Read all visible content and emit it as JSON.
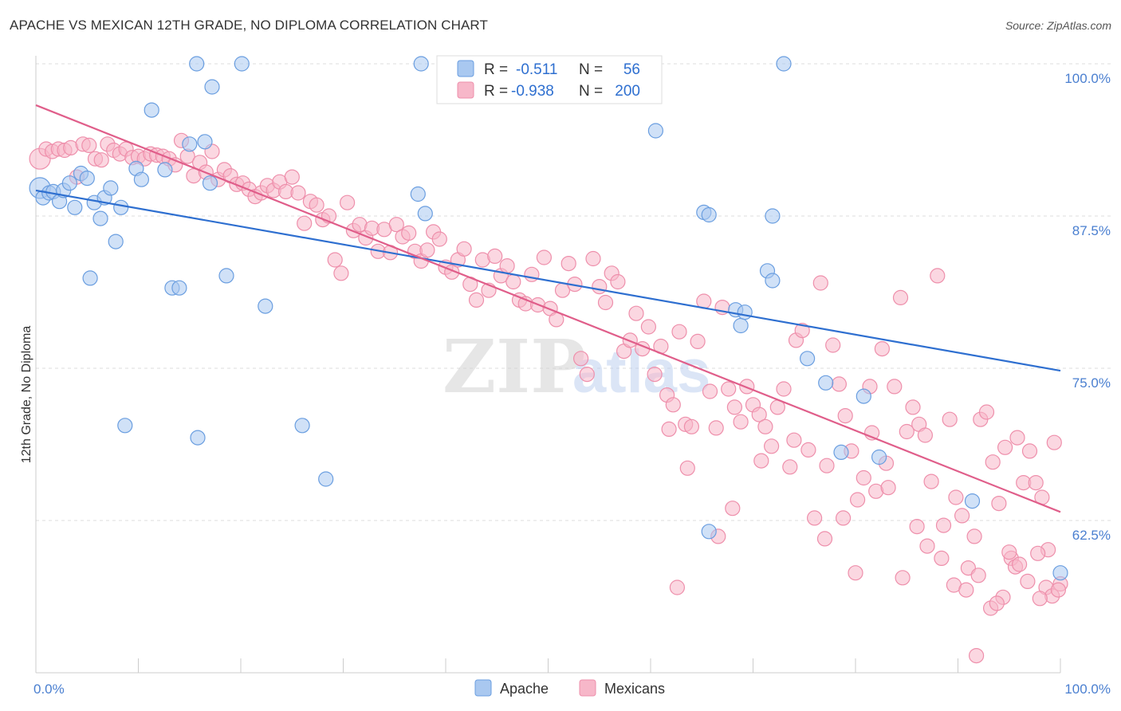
{
  "title": "APACHE VS MEXICAN 12TH GRADE, NO DIPLOMA CORRELATION CHART",
  "source": "Source: ZipAtlas.com",
  "watermark": {
    "zip": "ZIP",
    "atlas": "atlas"
  },
  "colors": {
    "apache_fill": "#a9c8f0",
    "apache_stroke": "#6a9ee0",
    "apache_line": "#2e6fd0",
    "mexican_fill": "#f7b7c9",
    "mexican_stroke": "#ee8fab",
    "mexican_line": "#e05e8a",
    "tick_label": "#4a7fd0",
    "grid": "#dddddd"
  },
  "legend_top": {
    "rows": [
      {
        "r_label": "R =",
        "r_value": "-0.511",
        "n_label": "N =",
        "n_value": "56"
      },
      {
        "r_label": "R =",
        "r_value": "-0.938",
        "n_label": "N =",
        "n_value": "200"
      }
    ]
  },
  "legend_bottom": {
    "items": [
      "Apache",
      "Mexicans"
    ]
  },
  "chart_data": {
    "type": "scatter",
    "title": "APACHE VS MEXICAN 12TH GRADE, NO DIPLOMA CORRELATION CHART",
    "xlabel": "",
    "ylabel": "12th Grade, No Diploma",
    "xlim": [
      0,
      100
    ],
    "ylim": [
      51.5,
      102
    ],
    "x_tick_labels": [
      "0.0%",
      "100.0%"
    ],
    "y_ticks": [
      62.5,
      75.0,
      87.5,
      100.0
    ],
    "y_tick_labels": [
      "62.5%",
      "75.0%",
      "87.5%",
      "100.0%"
    ],
    "grid": true,
    "legend_placement": "top-center",
    "series": [
      {
        "name": "Apache",
        "r": -0.511,
        "n": 56,
        "trend": {
          "x": [
            0,
            100
          ],
          "y": [
            89.6,
            74.8
          ]
        },
        "points": [
          [
            0.4,
            89.8
          ],
          [
            0.7,
            89.0
          ],
          [
            1.3,
            89.4
          ],
          [
            1.7,
            89.5
          ],
          [
            2.3,
            88.7
          ],
          [
            2.7,
            89.6
          ],
          [
            3.3,
            90.2
          ],
          [
            3.8,
            88.2
          ],
          [
            4.4,
            91.0
          ],
          [
            5.0,
            90.6
          ],
          [
            5.3,
            82.4
          ],
          [
            5.7,
            88.6
          ],
          [
            6.3,
            87.3
          ],
          [
            6.7,
            89.0
          ],
          [
            7.3,
            89.8
          ],
          [
            7.8,
            85.4
          ],
          [
            8.3,
            88.2
          ],
          [
            8.7,
            70.3
          ],
          [
            9.8,
            91.4
          ],
          [
            10.3,
            90.5
          ],
          [
            11.3,
            96.2
          ],
          [
            12.6,
            91.3
          ],
          [
            13.3,
            81.6
          ],
          [
            14.0,
            81.6
          ],
          [
            15.0,
            93.4
          ],
          [
            15.7,
            100.0
          ],
          [
            15.8,
            69.3
          ],
          [
            16.5,
            93.6
          ],
          [
            17.0,
            90.2
          ],
          [
            17.2,
            98.1
          ],
          [
            18.6,
            82.6
          ],
          [
            20.1,
            100.0
          ],
          [
            22.4,
            80.1
          ],
          [
            26.0,
            70.3
          ],
          [
            28.3,
            65.9
          ],
          [
            37.3,
            89.3
          ],
          [
            37.6,
            100.0
          ],
          [
            38.0,
            87.7
          ],
          [
            60.5,
            94.5
          ],
          [
            65.2,
            87.8
          ],
          [
            65.7,
            87.6
          ],
          [
            65.7,
            61.6
          ],
          [
            68.3,
            79.8
          ],
          [
            68.8,
            78.5
          ],
          [
            69.2,
            79.6
          ],
          [
            71.4,
            83.0
          ],
          [
            71.9,
            87.5
          ],
          [
            71.9,
            82.2
          ],
          [
            73.0,
            100.0
          ],
          [
            75.3,
            75.8
          ],
          [
            77.1,
            73.8
          ],
          [
            78.6,
            68.1
          ],
          [
            80.8,
            72.7
          ],
          [
            82.3,
            67.7
          ],
          [
            91.4,
            64.1
          ],
          [
            100.0,
            58.2
          ]
        ]
      },
      {
        "name": "Mexicans",
        "r": -0.938,
        "n": 200,
        "trend": {
          "x": [
            0,
            100
          ],
          "y": [
            96.6,
            63.2
          ]
        },
        "points": [
          [
            0.4,
            92.2
          ],
          [
            1.0,
            93.0
          ],
          [
            1.6,
            92.8
          ],
          [
            2.2,
            93.0
          ],
          [
            2.8,
            92.9
          ],
          [
            3.4,
            93.1
          ],
          [
            4.0,
            90.7
          ],
          [
            4.6,
            93.4
          ],
          [
            5.2,
            93.3
          ],
          [
            5.8,
            92.2
          ],
          [
            6.4,
            92.1
          ],
          [
            7.0,
            93.4
          ],
          [
            7.6,
            92.9
          ],
          [
            8.2,
            92.6
          ],
          [
            8.8,
            93.0
          ],
          [
            9.4,
            92.3
          ],
          [
            10.0,
            92.4
          ],
          [
            10.6,
            92.2
          ],
          [
            11.2,
            92.6
          ],
          [
            11.8,
            92.5
          ],
          [
            12.4,
            92.4
          ],
          [
            13.0,
            92.2
          ],
          [
            13.6,
            91.7
          ],
          [
            14.2,
            93.7
          ],
          [
            14.8,
            92.4
          ],
          [
            15.4,
            90.8
          ],
          [
            16.0,
            91.9
          ],
          [
            16.6,
            91.1
          ],
          [
            17.2,
            92.8
          ],
          [
            17.8,
            90.5
          ],
          [
            18.4,
            91.3
          ],
          [
            19.0,
            90.8
          ],
          [
            19.6,
            90.1
          ],
          [
            20.2,
            90.2
          ],
          [
            20.8,
            89.7
          ],
          [
            21.4,
            89.1
          ],
          [
            22.0,
            89.4
          ],
          [
            22.6,
            90.0
          ],
          [
            23.2,
            89.6
          ],
          [
            23.8,
            90.3
          ],
          [
            24.4,
            89.5
          ],
          [
            25.0,
            90.7
          ],
          [
            25.6,
            89.4
          ],
          [
            26.2,
            86.9
          ],
          [
            26.8,
            88.7
          ],
          [
            27.4,
            88.4
          ],
          [
            28.0,
            87.2
          ],
          [
            28.6,
            87.5
          ],
          [
            29.2,
            83.9
          ],
          [
            29.8,
            82.8
          ],
          [
            30.4,
            88.6
          ],
          [
            31.0,
            86.3
          ],
          [
            31.6,
            86.8
          ],
          [
            32.2,
            85.7
          ],
          [
            32.8,
            86.5
          ],
          [
            33.4,
            84.6
          ],
          [
            34.0,
            86.4
          ],
          [
            34.6,
            84.5
          ],
          [
            35.2,
            86.8
          ],
          [
            35.8,
            85.8
          ],
          [
            36.4,
            86.1
          ],
          [
            37.0,
            84.6
          ],
          [
            37.6,
            83.8
          ],
          [
            38.2,
            84.7
          ],
          [
            38.8,
            86.2
          ],
          [
            39.4,
            85.6
          ],
          [
            40.0,
            83.3
          ],
          [
            40.6,
            82.9
          ],
          [
            41.2,
            83.9
          ],
          [
            41.8,
            84.8
          ],
          [
            42.4,
            81.9
          ],
          [
            43.0,
            80.6
          ],
          [
            43.6,
            83.9
          ],
          [
            44.2,
            81.4
          ],
          [
            44.8,
            84.2
          ],
          [
            45.4,
            82.6
          ],
          [
            46.0,
            83.4
          ],
          [
            46.6,
            82.1
          ],
          [
            47.2,
            80.6
          ],
          [
            47.8,
            80.3
          ],
          [
            48.4,
            82.7
          ],
          [
            49.0,
            80.2
          ],
          [
            49.6,
            84.1
          ],
          [
            50.2,
            79.9
          ],
          [
            50.8,
            79.0
          ],
          [
            51.4,
            81.4
          ],
          [
            52.0,
            83.6
          ],
          [
            52.6,
            81.9
          ],
          [
            53.2,
            75.8
          ],
          [
            53.8,
            74.5
          ],
          [
            54.4,
            84.0
          ],
          [
            55.0,
            81.7
          ],
          [
            55.6,
            80.4
          ],
          [
            56.2,
            82.8
          ],
          [
            56.8,
            82.1
          ],
          [
            57.4,
            76.4
          ],
          [
            58.0,
            77.3
          ],
          [
            58.6,
            79.5
          ],
          [
            59.2,
            76.6
          ],
          [
            59.8,
            78.4
          ],
          [
            60.4,
            74.5
          ],
          [
            61.0,
            76.8
          ],
          [
            61.6,
            72.8
          ],
          [
            62.2,
            72.0
          ],
          [
            62.8,
            78.0
          ],
          [
            63.4,
            70.4
          ],
          [
            64.0,
            70.2
          ],
          [
            64.6,
            77.2
          ],
          [
            65.2,
            80.5
          ],
          [
            65.8,
            73.1
          ],
          [
            66.4,
            70.1
          ],
          [
            67.0,
            80.0
          ],
          [
            67.6,
            73.3
          ],
          [
            68.2,
            71.8
          ],
          [
            68.8,
            70.6
          ],
          [
            69.4,
            73.5
          ],
          [
            70.0,
            72.0
          ],
          [
            70.6,
            71.2
          ],
          [
            71.2,
            70.2
          ],
          [
            71.8,
            68.6
          ],
          [
            72.4,
            71.8
          ],
          [
            73.0,
            73.3
          ],
          [
            73.6,
            66.9
          ],
          [
            74.2,
            77.3
          ],
          [
            74.8,
            78.1
          ],
          [
            75.4,
            68.3
          ],
          [
            76.0,
            62.7
          ],
          [
            76.6,
            82.0
          ],
          [
            77.2,
            67.0
          ],
          [
            77.8,
            76.9
          ],
          [
            78.4,
            73.7
          ],
          [
            79.0,
            71.1
          ],
          [
            79.6,
            68.2
          ],
          [
            80.2,
            64.2
          ],
          [
            80.8,
            66.0
          ],
          [
            81.4,
            73.5
          ],
          [
            82.0,
            64.9
          ],
          [
            82.6,
            76.6
          ],
          [
            83.2,
            65.2
          ],
          [
            83.8,
            73.5
          ],
          [
            84.4,
            80.8
          ],
          [
            85.0,
            69.8
          ],
          [
            85.6,
            71.8
          ],
          [
            86.2,
            70.4
          ],
          [
            86.8,
            69.5
          ],
          [
            87.4,
            65.7
          ],
          [
            88.0,
            82.6
          ],
          [
            88.6,
            62.1
          ],
          [
            89.2,
            70.8
          ],
          [
            89.8,
            64.4
          ],
          [
            90.4,
            62.9
          ],
          [
            91.0,
            58.6
          ],
          [
            91.6,
            61.2
          ],
          [
            92.2,
            70.8
          ],
          [
            92.8,
            71.4
          ],
          [
            93.4,
            67.3
          ],
          [
            94.0,
            63.9
          ],
          [
            94.6,
            68.5
          ],
          [
            95.2,
            59.4
          ],
          [
            95.8,
            69.3
          ],
          [
            96.4,
            65.6
          ],
          [
            97.0,
            68.2
          ],
          [
            97.6,
            65.6
          ],
          [
            98.2,
            64.4
          ],
          [
            98.8,
            60.1
          ],
          [
            99.4,
            68.9
          ],
          [
            100.0,
            57.3
          ],
          [
            61.8,
            70.0
          ],
          [
            62.6,
            57.0
          ],
          [
            63.6,
            66.8
          ],
          [
            66.6,
            61.2
          ],
          [
            68.0,
            63.5
          ],
          [
            70.8,
            67.4
          ],
          [
            74.0,
            69.1
          ],
          [
            77.0,
            61.0
          ],
          [
            78.8,
            62.7
          ],
          [
            80.0,
            58.2
          ],
          [
            81.6,
            69.7
          ],
          [
            83.0,
            67.2
          ],
          [
            84.6,
            57.8
          ],
          [
            86.0,
            62.0
          ],
          [
            87.0,
            60.4
          ],
          [
            88.4,
            59.4
          ],
          [
            89.6,
            57.2
          ],
          [
            90.8,
            56.8
          ],
          [
            92.0,
            58.0
          ],
          [
            93.2,
            55.3
          ],
          [
            94.4,
            56.2
          ],
          [
            95.6,
            58.7
          ],
          [
            96.8,
            57.5
          ],
          [
            97.8,
            59.8
          ],
          [
            98.6,
            57.0
          ],
          [
            99.2,
            56.3
          ],
          [
            99.8,
            56.8
          ],
          [
            91.8,
            51.4
          ],
          [
            93.8,
            55.7
          ],
          [
            95.0,
            59.9
          ],
          [
            96.0,
            58.9
          ],
          [
            98.0,
            56.1
          ]
        ]
      }
    ]
  }
}
